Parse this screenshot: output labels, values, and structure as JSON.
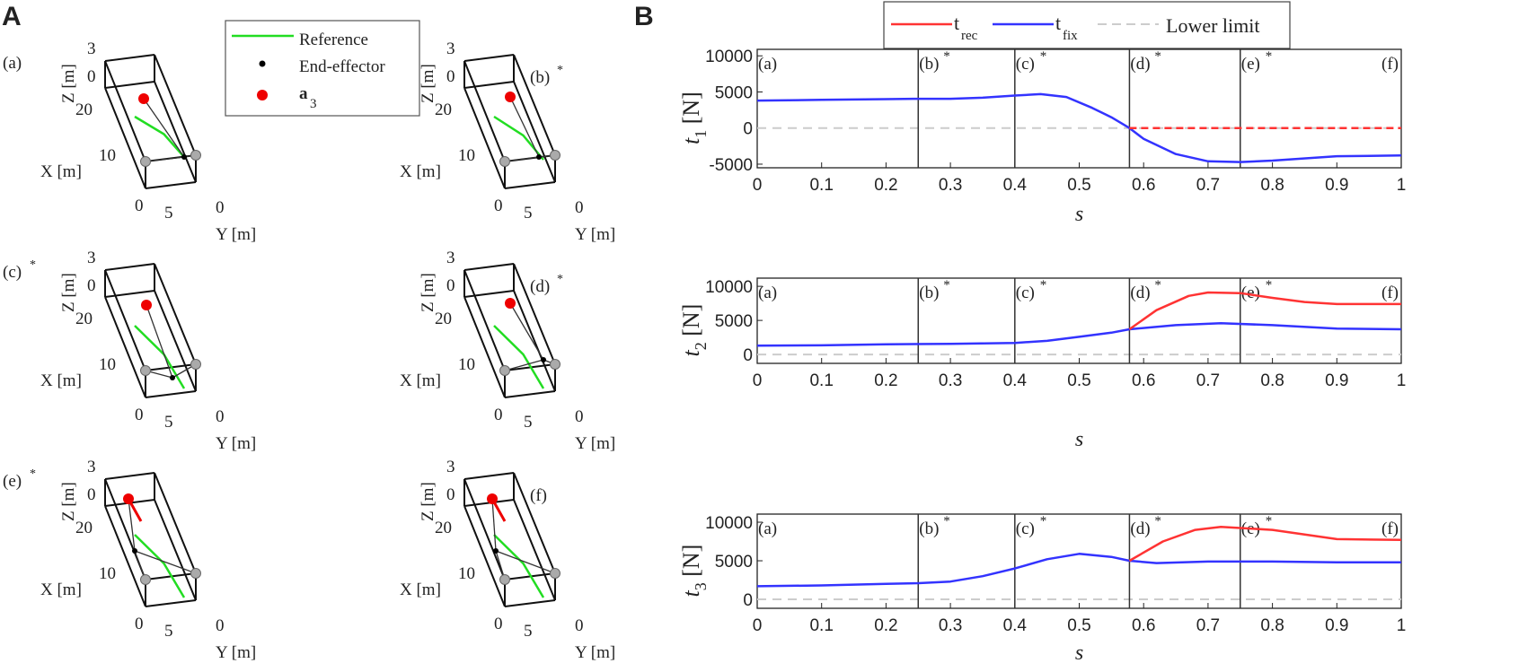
{
  "panel_a": {
    "label": "A",
    "legend": {
      "reference": "Reference",
      "end_effector": "End-effector",
      "a3": "a",
      "a3_sub": "3"
    },
    "axis": {
      "x_label": "X [m]",
      "y_label": "Y [m]",
      "z_label": "Z [m]",
      "z_ticks": [
        "3",
        "0"
      ],
      "x_ticks": [
        "20",
        "10",
        "0"
      ],
      "y_ticks": [
        "5",
        "0"
      ]
    },
    "subplots": [
      {
        "label": "(a)",
        "star": ""
      },
      {
        "label": "(b)",
        "star": "*"
      },
      {
        "label": "(c)",
        "star": "*"
      },
      {
        "label": "(d)",
        "star": "*"
      },
      {
        "label": "(e)",
        "star": "*"
      },
      {
        "label": "(f)",
        "star": ""
      }
    ],
    "colors": {
      "reference": "#22dd22",
      "end_effector": "#000000",
      "a3": "#ee0000",
      "anchor": "#aaaaaa"
    }
  },
  "panel_b": {
    "label": "B",
    "legend": {
      "rec": "t",
      "rec_sub": "rec",
      "fix": "t",
      "fix_sub": "fix",
      "lower": "Lower limit"
    }
  },
  "chart_data": [
    {
      "type": "line",
      "ylabel": "t",
      "ylabel_sub": "1",
      "ylabel_unit": " [N]",
      "xlabel": "s",
      "xlim": [
        0,
        1
      ],
      "ylim": [
        -5500,
        10900
      ],
      "xticks": [
        0,
        0.1,
        0.2,
        0.3,
        0.4,
        0.5,
        0.6,
        0.7,
        0.8,
        0.9,
        1
      ],
      "yticks": [
        -5000,
        0,
        5000,
        10000
      ],
      "events": [
        {
          "s": 0,
          "label": "(a)",
          "star": ""
        },
        {
          "s": 0.25,
          "label": "(b)",
          "star": "*"
        },
        {
          "s": 0.4,
          "label": "(c)",
          "star": "*"
        },
        {
          "s": 0.578,
          "label": "(d)",
          "star": "*"
        },
        {
          "s": 0.75,
          "label": "(e)",
          "star": "*"
        },
        {
          "s": 1,
          "label": "(f)",
          "star": ""
        }
      ],
      "lower_limit": 0,
      "series": [
        {
          "name": "t_fix",
          "color": "#3333ff",
          "x": [
            0,
            0.1,
            0.2,
            0.25,
            0.3,
            0.35,
            0.4,
            0.44,
            0.48,
            0.52,
            0.55,
            0.578,
            0.6,
            0.65,
            0.7,
            0.75,
            0.8,
            0.9,
            1
          ],
          "y": [
            3800,
            3900,
            4000,
            4050,
            4050,
            4200,
            4500,
            4700,
            4300,
            2800,
            1500,
            0,
            -1500,
            -3600,
            -4600,
            -4700,
            -4500,
            -3900,
            -3800
          ]
        },
        {
          "name": "t_rec",
          "color": "#ff3333",
          "dashed": true,
          "x": [
            0.578,
            1
          ],
          "y": [
            0,
            0
          ]
        }
      ]
    },
    {
      "type": "line",
      "ylabel": "t",
      "ylabel_sub": "2",
      "ylabel_unit": " [N]",
      "xlabel": "s",
      "xlim": [
        0,
        1
      ],
      "ylim": [
        -1300,
        11200
      ],
      "xticks": [
        0,
        0.1,
        0.2,
        0.3,
        0.4,
        0.5,
        0.6,
        0.7,
        0.8,
        0.9,
        1
      ],
      "yticks": [
        0,
        5000,
        10000
      ],
      "events": [
        {
          "s": 0,
          "label": "(a)",
          "star": ""
        },
        {
          "s": 0.25,
          "label": "(b)",
          "star": "*"
        },
        {
          "s": 0.4,
          "label": "(c)",
          "star": "*"
        },
        {
          "s": 0.578,
          "label": "(d)",
          "star": "*"
        },
        {
          "s": 0.75,
          "label": "(e)",
          "star": "*"
        },
        {
          "s": 1,
          "label": "(f)",
          "star": ""
        }
      ],
      "lower_limit": 0,
      "series": [
        {
          "name": "t_fix",
          "color": "#3333ff",
          "x": [
            0,
            0.1,
            0.2,
            0.3,
            0.4,
            0.45,
            0.5,
            0.55,
            0.578,
            0.65,
            0.72,
            0.8,
            0.9,
            1
          ],
          "y": [
            1300,
            1350,
            1500,
            1550,
            1700,
            2000,
            2600,
            3200,
            3700,
            4300,
            4600,
            4300,
            3800,
            3700
          ]
        },
        {
          "name": "t_rec",
          "color": "#ff3333",
          "x": [
            0.578,
            0.62,
            0.67,
            0.7,
            0.75,
            0.8,
            0.85,
            0.9,
            1
          ],
          "y": [
            3700,
            6500,
            8600,
            9100,
            9000,
            8300,
            7700,
            7400,
            7400
          ]
        }
      ]
    },
    {
      "type": "line",
      "ylabel": "t",
      "ylabel_sub": "3",
      "ylabel_unit": " [N]",
      "xlabel": "s",
      "xlim": [
        0,
        1
      ],
      "ylim": [
        -1160,
        11050
      ],
      "xticks": [
        0,
        0.1,
        0.2,
        0.3,
        0.4,
        0.5,
        0.6,
        0.7,
        0.8,
        0.9,
        1
      ],
      "yticks": [
        0,
        5000,
        10000
      ],
      "events": [
        {
          "s": 0,
          "label": "(a)",
          "star": ""
        },
        {
          "s": 0.25,
          "label": "(b)",
          "star": "*"
        },
        {
          "s": 0.4,
          "label": "(c)",
          "star": "*"
        },
        {
          "s": 0.578,
          "label": "(d)",
          "star": "*"
        },
        {
          "s": 0.75,
          "label": "(e)",
          "star": "*"
        },
        {
          "s": 1,
          "label": "(f)",
          "star": ""
        }
      ],
      "lower_limit": 0,
      "series": [
        {
          "name": "t_fix",
          "color": "#3333ff",
          "x": [
            0,
            0.1,
            0.2,
            0.25,
            0.3,
            0.35,
            0.4,
            0.45,
            0.5,
            0.55,
            0.578,
            0.62,
            0.7,
            0.8,
            0.9,
            1
          ],
          "y": [
            1700,
            1800,
            2000,
            2100,
            2300,
            3000,
            4000,
            5200,
            5900,
            5500,
            5000,
            4700,
            4900,
            4900,
            4800,
            4800
          ]
        },
        {
          "name": "t_rec",
          "color": "#ff3333",
          "x": [
            0.578,
            0.63,
            0.68,
            0.72,
            0.8,
            0.9,
            1
          ],
          "y": [
            5000,
            7500,
            9000,
            9400,
            9000,
            7800,
            7700
          ]
        }
      ]
    }
  ]
}
